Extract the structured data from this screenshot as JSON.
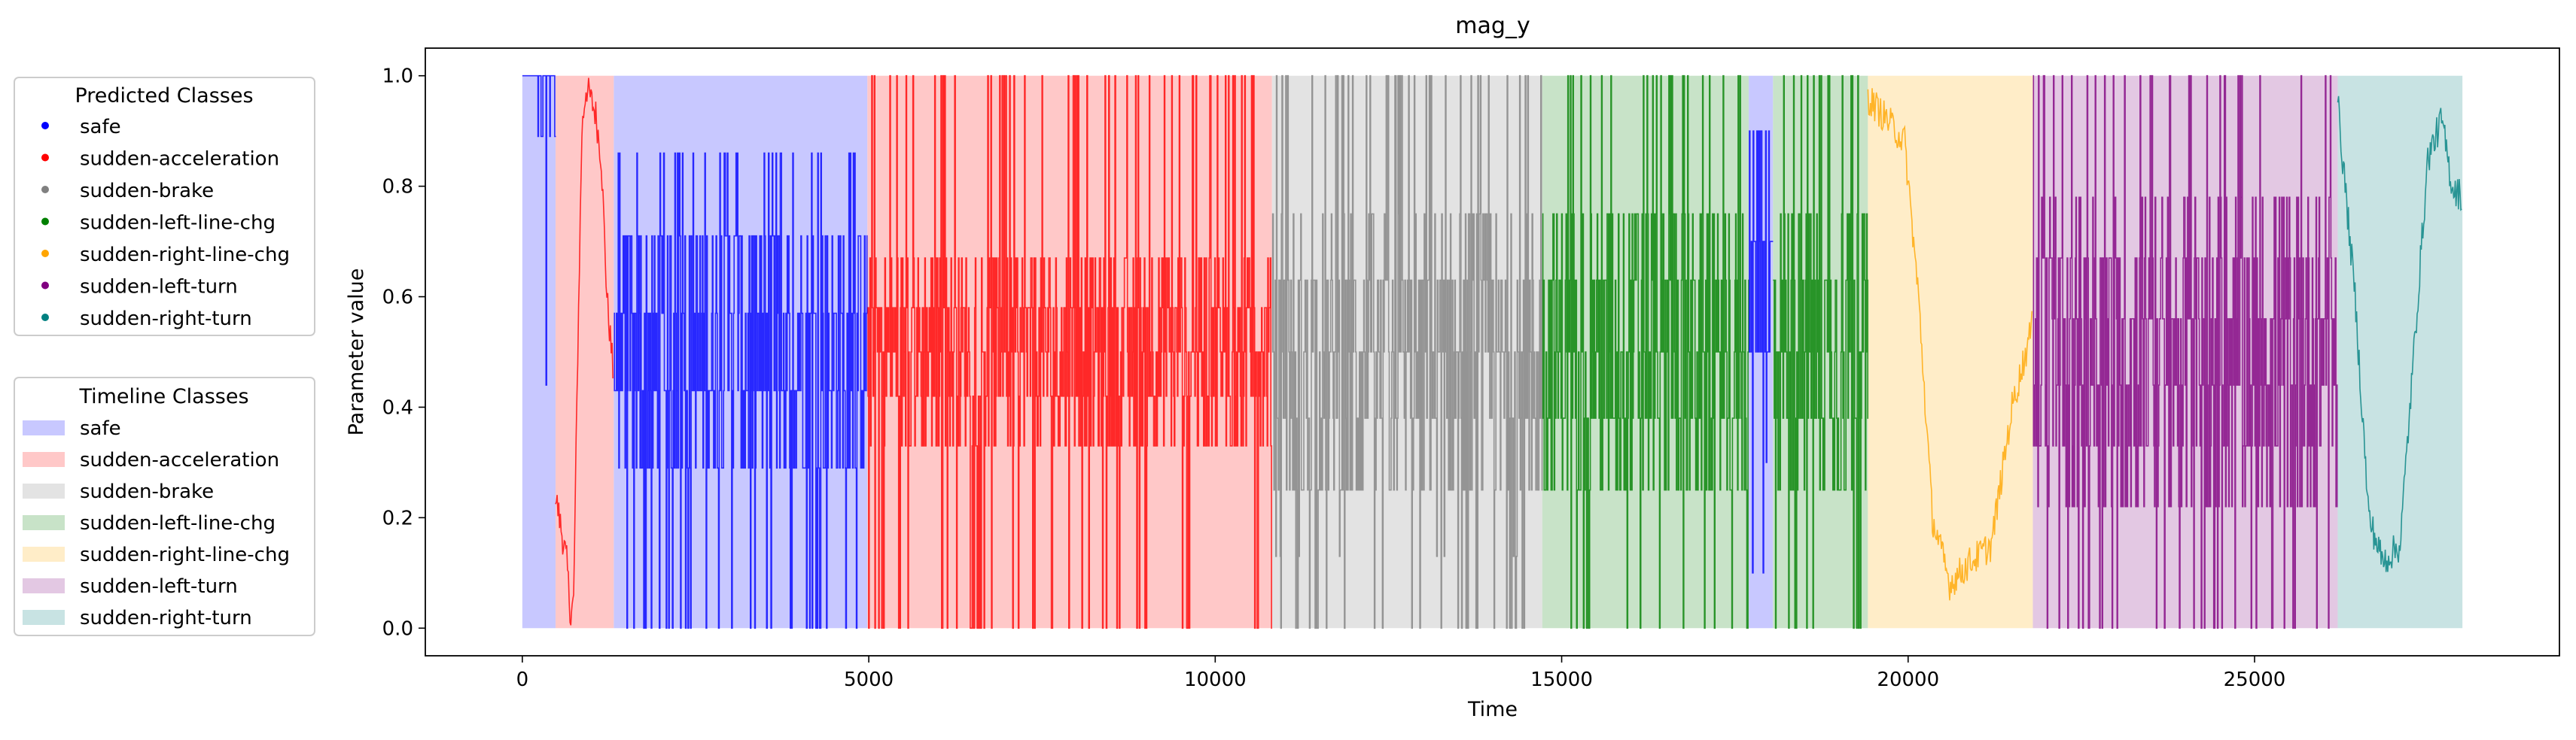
{
  "chart_data": {
    "type": "line",
    "title": "mag_y",
    "xlabel": "Time",
    "ylabel": "Parameter value",
    "xlim": [
      -1400,
      29400
    ],
    "ylim": [
      -0.05,
      1.05
    ],
    "xticks": [
      0,
      5000,
      10000,
      15000,
      20000,
      25000
    ],
    "yticks": [
      0.0,
      0.2,
      0.4,
      0.6,
      0.8,
      1.0
    ],
    "xtick_labels": [
      "0",
      "5000",
      "10000",
      "15000",
      "20000",
      "25000"
    ],
    "ytick_labels": [
      "0.0",
      "0.2",
      "0.4",
      "0.6",
      "0.8",
      "1.0"
    ],
    "grid": false,
    "legend_placement": "left-outside",
    "predicted_legend_title": "Predicted Classes",
    "timeline_legend_title": "Timeline Classes",
    "classes": [
      {
        "name": "safe",
        "color": "#0000ff",
        "band_color": "#c8c8ff"
      },
      {
        "name": "sudden-acceleration",
        "color": "#ff0000",
        "band_color": "#ffc8c8"
      },
      {
        "name": "sudden-brake",
        "color": "#808080",
        "band_color": "#e3e3e3"
      },
      {
        "name": "sudden-left-line-chg",
        "color": "#008000",
        "band_color": "#c8e3c8"
      },
      {
        "name": "sudden-right-line-chg",
        "color": "#ffa500",
        "band_color": "#ffedc8"
      },
      {
        "name": "sudden-left-turn",
        "color": "#800080",
        "band_color": "#e3c8e3"
      },
      {
        "name": "sudden-right-turn",
        "color": "#008080",
        "band_color": "#c8e3e3"
      }
    ],
    "timeline_segments": [
      {
        "class": "safe",
        "start": 0,
        "end": 480
      },
      {
        "class": "sudden-acceleration",
        "start": 480,
        "end": 1320
      },
      {
        "class": "safe",
        "start": 1320,
        "end": 4980
      },
      {
        "class": "sudden-acceleration",
        "start": 4980,
        "end": 10820
      },
      {
        "class": "sudden-brake",
        "start": 10820,
        "end": 14720
      },
      {
        "class": "sudden-left-line-chg",
        "start": 14720,
        "end": 17700
      },
      {
        "class": "safe",
        "start": 17700,
        "end": 18050
      },
      {
        "class": "sudden-left-line-chg",
        "start": 18050,
        "end": 19420
      },
      {
        "class": "sudden-right-line-chg",
        "start": 19420,
        "end": 21800
      },
      {
        "class": "sudden-left-turn",
        "start": 21800,
        "end": 26200
      },
      {
        "class": "sudden-right-turn",
        "start": 26200,
        "end": 28000
      }
    ],
    "signal_segments": [
      {
        "class": "safe",
        "start": 0,
        "end": 480,
        "pattern": "noise",
        "levels": [
          0.44,
          0.56,
          0.67,
          0.78,
          0.89,
          1.0
        ],
        "base": 0.7
      },
      {
        "class": "sudden-acceleration",
        "start": 480,
        "end": 1320,
        "pattern": "wave",
        "shape": [
          [
            480,
            0.24
          ],
          [
            560,
            0.18
          ],
          [
            640,
            0.12
          ],
          [
            700,
            0.02
          ],
          [
            740,
            0.05
          ],
          [
            800,
            0.5
          ],
          [
            860,
            0.9
          ],
          [
            920,
            0.98
          ],
          [
            980,
            0.96
          ],
          [
            1060,
            0.93
          ],
          [
            1140,
            0.85
          ],
          [
            1220,
            0.6
          ],
          [
            1320,
            0.45
          ]
        ]
      },
      {
        "class": "safe",
        "start": 1320,
        "end": 4980,
        "pattern": "noise",
        "levels": [
          0.0,
          0.14,
          0.29,
          0.43,
          0.57,
          0.71,
          0.86
        ],
        "base": 0.5
      },
      {
        "class": "sudden-acceleration",
        "start": 4980,
        "end": 10820,
        "pattern": "noise",
        "levels": [
          0.0,
          0.17,
          0.33,
          0.42,
          0.5,
          0.58,
          0.67,
          0.83,
          1.0
        ],
        "base": 0.5
      },
      {
        "class": "sudden-brake",
        "start": 10820,
        "end": 14720,
        "pattern": "noise",
        "levels": [
          0.0,
          0.13,
          0.25,
          0.38,
          0.5,
          0.63,
          0.75,
          0.88,
          1.0
        ],
        "base": 0.45
      },
      {
        "class": "sudden-left-line-chg",
        "start": 14720,
        "end": 17700,
        "pattern": "noise",
        "levels": [
          0.0,
          0.13,
          0.25,
          0.38,
          0.5,
          0.63,
          0.75,
          0.88,
          1.0
        ],
        "base": 0.5
      },
      {
        "class": "safe",
        "start": 17700,
        "end": 18050,
        "pattern": "noise",
        "levels": [
          0.1,
          0.3,
          0.5,
          0.7,
          0.9
        ],
        "base": 0.55
      },
      {
        "class": "sudden-left-line-chg",
        "start": 18050,
        "end": 19420,
        "pattern": "noise",
        "levels": [
          0.0,
          0.13,
          0.25,
          0.38,
          0.5,
          0.63,
          0.75,
          0.88,
          1.0
        ],
        "base": 0.5
      },
      {
        "class": "sudden-right-line-chg",
        "start": 19420,
        "end": 21800,
        "pattern": "wave",
        "shape": [
          [
            19420,
            0.96
          ],
          [
            19700,
            0.92
          ],
          [
            19950,
            0.88
          ],
          [
            20150,
            0.6
          ],
          [
            20350,
            0.2
          ],
          [
            20600,
            0.08
          ],
          [
            20900,
            0.12
          ],
          [
            21200,
            0.15
          ],
          [
            21500,
            0.4
          ],
          [
            21800,
            0.55
          ]
        ]
      },
      {
        "class": "sudden-left-turn",
        "start": 21800,
        "end": 26200,
        "pattern": "noise",
        "levels": [
          0.0,
          0.11,
          0.22,
          0.33,
          0.44,
          0.56,
          0.67,
          0.78,
          0.89,
          1.0
        ],
        "base": 0.5
      },
      {
        "class": "sudden-right-turn",
        "start": 26200,
        "end": 28000,
        "pattern": "wave",
        "shape": [
          [
            26200,
            0.95
          ],
          [
            26450,
            0.6
          ],
          [
            26650,
            0.2
          ],
          [
            26850,
            0.12
          ],
          [
            27100,
            0.15
          ],
          [
            27300,
            0.5
          ],
          [
            27500,
            0.85
          ],
          [
            27700,
            0.92
          ],
          [
            27850,
            0.8
          ],
          [
            28000,
            0.78
          ]
        ]
      }
    ]
  }
}
